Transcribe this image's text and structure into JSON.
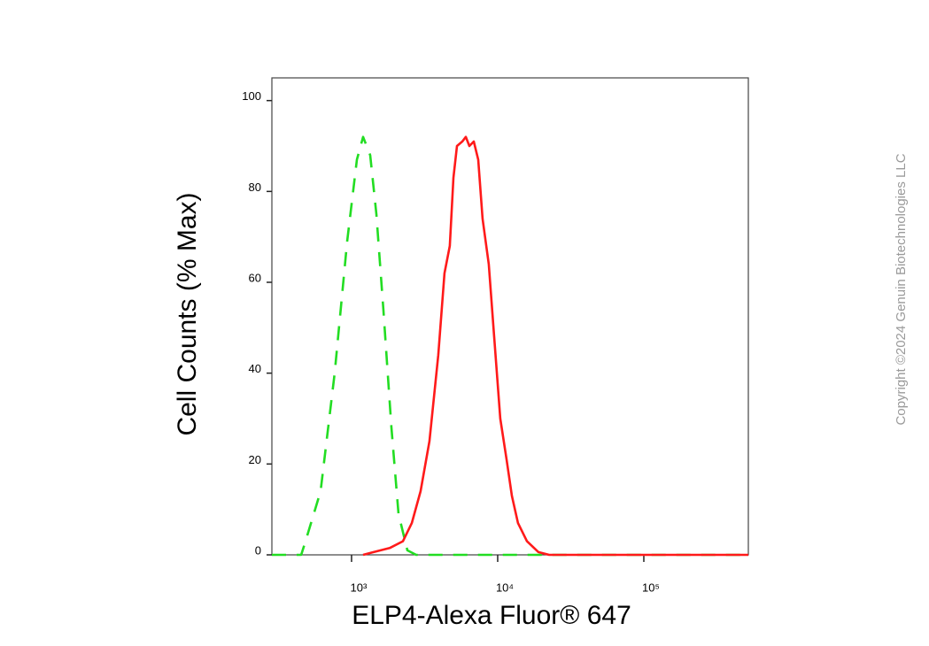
{
  "chart_data": {
    "type": "line",
    "x_label": "ELP4-Alexa Fluor® 647",
    "y_label": "Cell Counts (% Max)",
    "watermark": "Copyright ©2024 Genuin Biotechnologies LLC",
    "xscale": "log",
    "xlim": [
      285,
      519000
    ],
    "ylim": [
      0,
      105
    ],
    "xticks": [
      {
        "value": 1000,
        "label": "10³"
      },
      {
        "value": 10000,
        "label": "10⁴"
      },
      {
        "value": 100000,
        "label": "10⁵"
      }
    ],
    "yticks": [
      0,
      20,
      40,
      60,
      80,
      100
    ],
    "grid": false,
    "series": [
      {
        "color": "#22dd22",
        "line_style": "dashed",
        "x": [
          285,
          452,
          484,
          614,
          767,
          933,
          1088,
          1199,
          1341,
          1478,
          1652,
          1874,
          2096,
          2410,
          2767,
          17000,
          519000
        ],
        "values": [
          0,
          0,
          3,
          14,
          40,
          69,
          87,
          92,
          88,
          75,
          54,
          28,
          9,
          1,
          0,
          0,
          0
        ]
      },
      {
        "color": "#ff1a1a",
        "line_style": "solid",
        "x": [
          1199,
          1378,
          1823,
          2249,
          2583,
          2969,
          3413,
          3923,
          4325,
          4705,
          4977,
          5262,
          5725,
          6055,
          6402,
          6860,
          7356,
          7882,
          8693,
          9455,
          10420,
          11500,
          12500,
          13770,
          15850,
          19010,
          22490,
          519000
        ],
        "values": [
          0,
          0.5,
          1.5,
          3,
          7,
          14,
          25,
          44,
          62,
          68,
          83,
          90,
          91,
          92,
          90,
          91,
          87,
          74,
          64,
          48,
          30,
          21,
          13,
          7,
          3,
          0.6,
          0,
          0
        ]
      }
    ]
  }
}
